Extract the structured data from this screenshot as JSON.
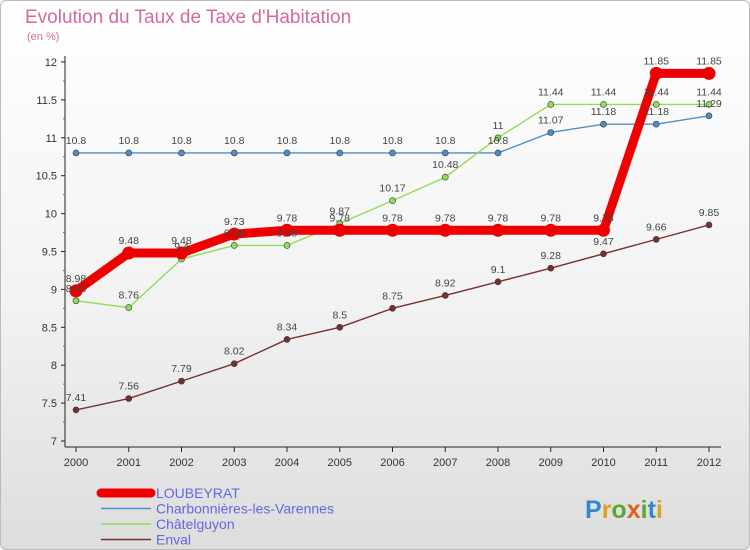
{
  "title": "Evolution du Taux de Taxe d'Habitation",
  "subtitle": "(en %)",
  "logo_text": "Proxiti",
  "chart_data": {
    "type": "line",
    "title": "Evolution du Taux de Taxe d'Habitation",
    "ylabel": "(en %)",
    "xlabel": "",
    "x": [
      "2000",
      "2001",
      "2002",
      "2003",
      "2004",
      "2005",
      "2006",
      "2007",
      "2008",
      "2009",
      "2010",
      "2011",
      "2012"
    ],
    "ylim": [
      7,
      12
    ],
    "yticks": [
      "7",
      "7.5",
      "8",
      "8.5",
      "9",
      "9.5",
      "10",
      "10.5",
      "11",
      "11.5",
      "12"
    ],
    "grid": false,
    "legend_position": "bottom-left",
    "series": [
      {
        "name": "Charbonnières-les-Varennes",
        "color": "#4f8fc7",
        "values": [
          10.8,
          10.8,
          10.8,
          10.8,
          10.8,
          10.8,
          10.8,
          10.8,
          10.8,
          11.07,
          11.18,
          11.18,
          11.29
        ],
        "labels": [
          "10.8",
          "10.8",
          "10.8",
          "10.8",
          "10.8",
          "10.8",
          "10.8",
          "10.8",
          "10.8",
          "11.07",
          "11.18",
          "11.18",
          "11.29"
        ]
      },
      {
        "name": "Châtelguyon",
        "color": "#90dd5a",
        "values": [
          8.85,
          8.76,
          9.4,
          9.58,
          9.58,
          9.87,
          10.17,
          10.48,
          11,
          11.44,
          11.44,
          11.44,
          11.44
        ],
        "labels": [
          "8.85",
          "8.76",
          "9.4",
          "9.58",
          "9.58",
          "9.87",
          "10.17",
          "10.48",
          "11",
          "11.44",
          "11.44",
          "11.44",
          "11.44"
        ]
      },
      {
        "name": "Enval",
        "color": "#7a2f2f",
        "values": [
          7.41,
          7.56,
          7.79,
          8.02,
          8.34,
          8.5,
          8.75,
          8.92,
          9.1,
          9.28,
          9.47,
          9.66,
          9.85
        ],
        "labels": [
          "7.41",
          "7.56",
          "7.79",
          "8.02",
          "8.34",
          "8.5",
          "8.75",
          "8.92",
          "9.1",
          "9.28",
          "9.47",
          "9.66",
          "9.85"
        ]
      },
      {
        "name": "LOUBEYRAT",
        "color": "#ee0000",
        "values": [
          8.98,
          9.48,
          9.48,
          9.73,
          9.78,
          9.78,
          9.78,
          9.78,
          9.78,
          9.78,
          9.78,
          11.85,
          11.85
        ],
        "labels": [
          "8.98",
          "9.48",
          "9.48",
          "9.73",
          "9.78",
          "9.78",
          "9.78",
          "9.78",
          "9.78",
          "9.78",
          "9.78",
          "11.85",
          "11.85"
        ]
      }
    ],
    "legend_order": [
      "LOUBEYRAT",
      "Charbonnières-les-Varennes",
      "Châtelguyon",
      "Enval"
    ]
  }
}
